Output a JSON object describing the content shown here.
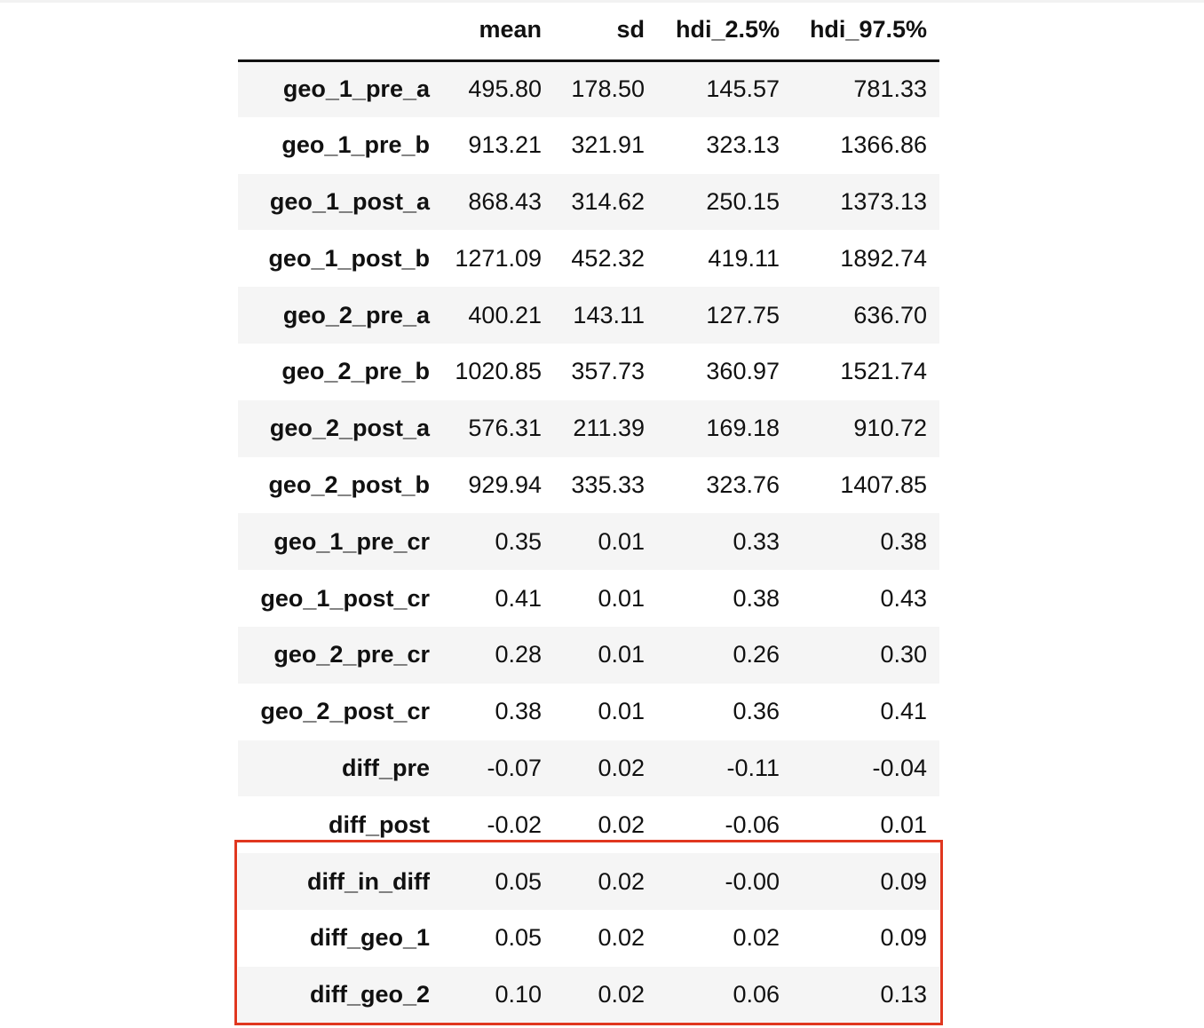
{
  "table": {
    "columns": [
      "",
      "mean",
      "sd",
      "hdi_2.5%",
      "hdi_97.5%"
    ],
    "rows": [
      {
        "label": "geo_1_pre_a",
        "mean": "495.80",
        "sd": "178.50",
        "hdi_low": "145.57",
        "hdi_high": "781.33"
      },
      {
        "label": "geo_1_pre_b",
        "mean": "913.21",
        "sd": "321.91",
        "hdi_low": "323.13",
        "hdi_high": "1366.86"
      },
      {
        "label": "geo_1_post_a",
        "mean": "868.43",
        "sd": "314.62",
        "hdi_low": "250.15",
        "hdi_high": "1373.13"
      },
      {
        "label": "geo_1_post_b",
        "mean": "1271.09",
        "sd": "452.32",
        "hdi_low": "419.11",
        "hdi_high": "1892.74"
      },
      {
        "label": "geo_2_pre_a",
        "mean": "400.21",
        "sd": "143.11",
        "hdi_low": "127.75",
        "hdi_high": "636.70"
      },
      {
        "label": "geo_2_pre_b",
        "mean": "1020.85",
        "sd": "357.73",
        "hdi_low": "360.97",
        "hdi_high": "1521.74"
      },
      {
        "label": "geo_2_post_a",
        "mean": "576.31",
        "sd": "211.39",
        "hdi_low": "169.18",
        "hdi_high": "910.72"
      },
      {
        "label": "geo_2_post_b",
        "mean": "929.94",
        "sd": "335.33",
        "hdi_low": "323.76",
        "hdi_high": "1407.85"
      },
      {
        "label": "geo_1_pre_cr",
        "mean": "0.35",
        "sd": "0.01",
        "hdi_low": "0.33",
        "hdi_high": "0.38"
      },
      {
        "label": "geo_1_post_cr",
        "mean": "0.41",
        "sd": "0.01",
        "hdi_low": "0.38",
        "hdi_high": "0.43"
      },
      {
        "label": "geo_2_pre_cr",
        "mean": "0.28",
        "sd": "0.01",
        "hdi_low": "0.26",
        "hdi_high": "0.30"
      },
      {
        "label": "geo_2_post_cr",
        "mean": "0.38",
        "sd": "0.01",
        "hdi_low": "0.36",
        "hdi_high": "0.41"
      },
      {
        "label": "diff_pre",
        "mean": "-0.07",
        "sd": "0.02",
        "hdi_low": "-0.11",
        "hdi_high": "-0.04"
      },
      {
        "label": "diff_post",
        "mean": "-0.02",
        "sd": "0.02",
        "hdi_low": "-0.06",
        "hdi_high": "0.01"
      },
      {
        "label": "diff_in_diff",
        "mean": "0.05",
        "sd": "0.02",
        "hdi_low": "-0.00",
        "hdi_high": "0.09"
      },
      {
        "label": "diff_geo_1",
        "mean": "0.05",
        "sd": "0.02",
        "hdi_low": "0.02",
        "hdi_high": "0.09"
      },
      {
        "label": "diff_geo_2",
        "mean": "0.10",
        "sd": "0.02",
        "hdi_low": "0.06",
        "hdi_high": "0.13"
      }
    ]
  },
  "highlight": {
    "color": "#e0371f",
    "rows": [
      "diff_in_diff",
      "diff_geo_1",
      "diff_geo_2"
    ]
  }
}
